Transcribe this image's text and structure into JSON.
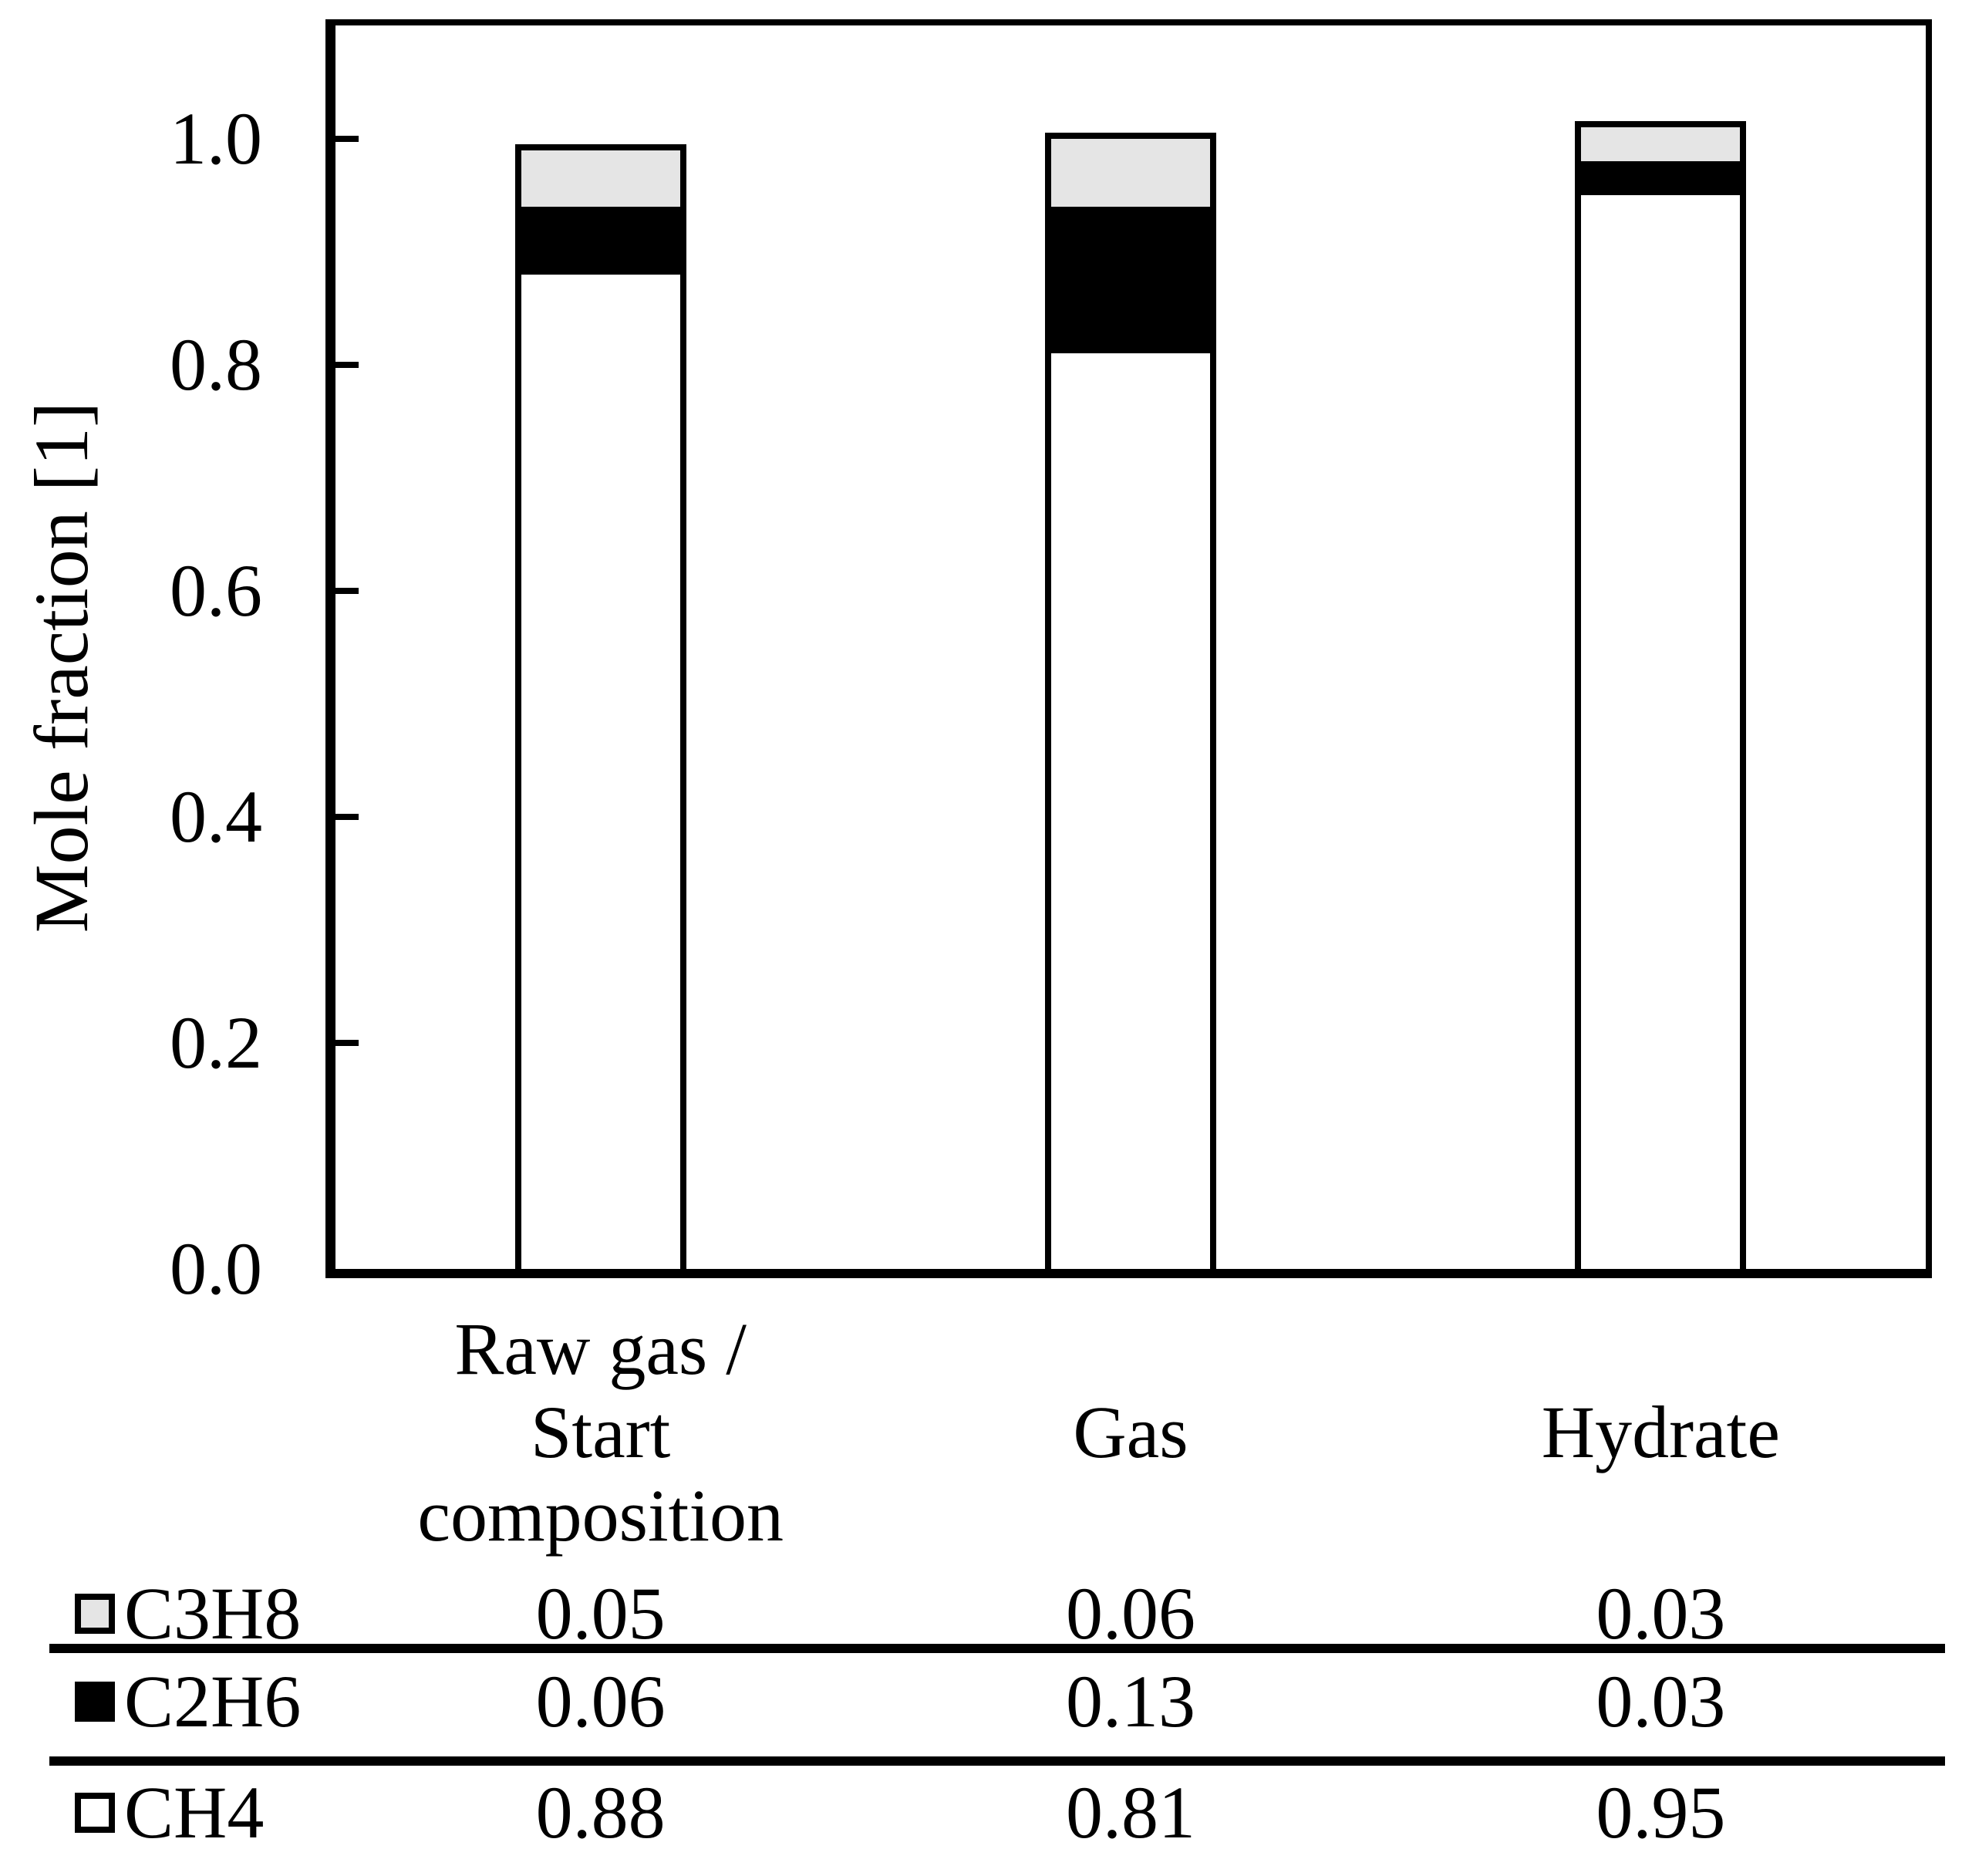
{
  "chart_data": {
    "type": "bar",
    "stacked": true,
    "title": "",
    "ylabel": "Mole fraction [1]",
    "xlabel": "",
    "ylim": [
      0,
      1.1
    ],
    "yticks": [
      0,
      0.2,
      0.4,
      0.6,
      0.8,
      1.0
    ],
    "ytick_labels": [
      "0.0",
      "0.2",
      "0.4",
      "0.6",
      "0.8",
      "1.0"
    ],
    "grid": false,
    "legend_position": "table-below",
    "categories": [
      "Raw gas / Start composition",
      "Gas",
      "Hydrate"
    ],
    "category_label_lines": [
      [
        "Raw gas /",
        "Start",
        "composition"
      ],
      [
        "Gas"
      ],
      [
        "Hydrate"
      ]
    ],
    "series": [
      {
        "name": "CH4",
        "color": "#ffffff",
        "values": [
          0.88,
          0.81,
          0.95
        ]
      },
      {
        "name": "C2H6",
        "color": "#000000",
        "values": [
          0.06,
          0.13,
          0.03
        ]
      },
      {
        "name": "C3H8",
        "color": "#e5e5e5",
        "values": [
          0.05,
          0.06,
          0.03
        ]
      }
    ],
    "legend_table": {
      "rows": [
        {
          "label": "C3H8",
          "marker_fill": "#e5e5e5",
          "values": [
            "0.05",
            "0.06",
            "0.03"
          ]
        },
        {
          "label": "C2H6",
          "marker_fill": "#000000",
          "values": [
            "0.06",
            "0.13",
            "0.03"
          ]
        },
        {
          "label": "CH4",
          "marker_fill": "#ffffff",
          "values": [
            "0.88",
            "0.81",
            "0.95"
          ]
        }
      ]
    }
  }
}
